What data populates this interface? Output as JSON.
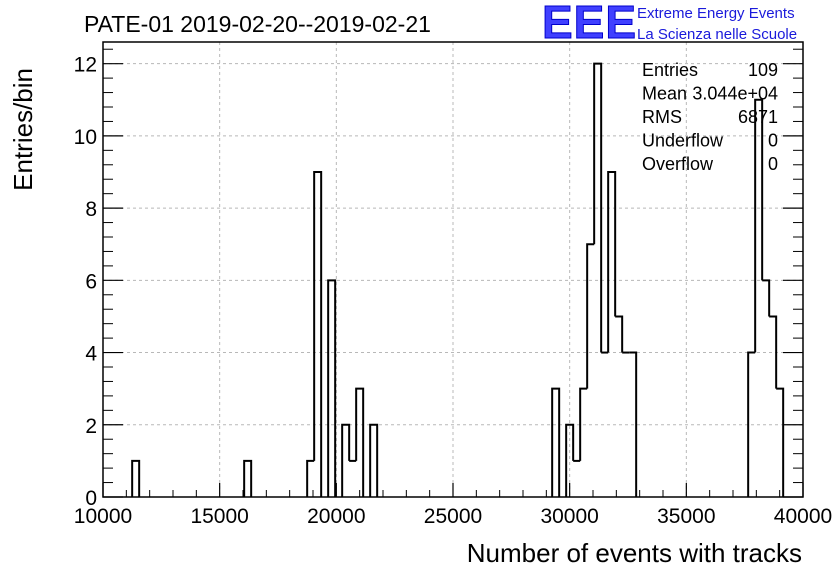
{
  "chart_data": {
    "type": "histogram",
    "title": "PATE-01 2019-02-20--2019-02-21",
    "xlabel": "Number of events with tracks",
    "ylabel": "Entries/bin",
    "xlim": [
      10000,
      40000
    ],
    "ylim": [
      0,
      12.6
    ],
    "xticks": [
      "10000",
      "15000",
      "20000",
      "25000",
      "30000",
      "35000",
      "40000"
    ],
    "yticks": [
      "0",
      "2",
      "4",
      "6",
      "8",
      "10",
      "12"
    ],
    "grid": true,
    "bins": [
      {
        "x0": 11250,
        "x1": 11550,
        "count": 1
      },
      {
        "x0": 16050,
        "x1": 16350,
        "count": 1
      },
      {
        "x0": 18750,
        "x1": 19050,
        "count": 1
      },
      {
        "x0": 19050,
        "x1": 19350,
        "count": 9
      },
      {
        "x0": 19650,
        "x1": 19950,
        "count": 6
      },
      {
        "x0": 20250,
        "x1": 20550,
        "count": 2
      },
      {
        "x0": 20550,
        "x1": 20850,
        "count": 1
      },
      {
        "x0": 20850,
        "x1": 21150,
        "count": 3
      },
      {
        "x0": 21450,
        "x1": 21750,
        "count": 2
      },
      {
        "x0": 29250,
        "x1": 29550,
        "count": 3
      },
      {
        "x0": 29850,
        "x1": 30150,
        "count": 2
      },
      {
        "x0": 30150,
        "x1": 30450,
        "count": 1
      },
      {
        "x0": 30450,
        "x1": 30750,
        "count": 3
      },
      {
        "x0": 30750,
        "x1": 31050,
        "count": 7
      },
      {
        "x0": 31050,
        "x1": 31350,
        "count": 12
      },
      {
        "x0": 31350,
        "x1": 31650,
        "count": 4
      },
      {
        "x0": 31650,
        "x1": 31950,
        "count": 9
      },
      {
        "x0": 31950,
        "x1": 32250,
        "count": 5
      },
      {
        "x0": 32250,
        "x1": 32550,
        "count": 4
      },
      {
        "x0": 32550,
        "x1": 32850,
        "count": 4
      },
      {
        "x0": 37650,
        "x1": 37950,
        "count": 4
      },
      {
        "x0": 37950,
        "x1": 38250,
        "count": 11
      },
      {
        "x0": 38250,
        "x1": 38550,
        "count": 6
      },
      {
        "x0": 38550,
        "x1": 38850,
        "count": 5
      },
      {
        "x0": 38850,
        "x1": 39150,
        "count": 3
      }
    ],
    "stats": [
      {
        "label": "Entries",
        "value": "109"
      },
      {
        "label": "Mean",
        "value": "3.044e+04"
      },
      {
        "label": "RMS",
        "value": "6871"
      },
      {
        "label": "Underflow",
        "value": "0"
      },
      {
        "label": "Overflow",
        "value": "0"
      }
    ]
  },
  "logo": {
    "mark": "EEE",
    "line1": "Extreme Energy Events",
    "line2": "La Scienza nelle Scuole"
  },
  "colors": {
    "line": "#000000",
    "grid": "#b8b8b8",
    "logo_blue": "#1a1adb"
  }
}
